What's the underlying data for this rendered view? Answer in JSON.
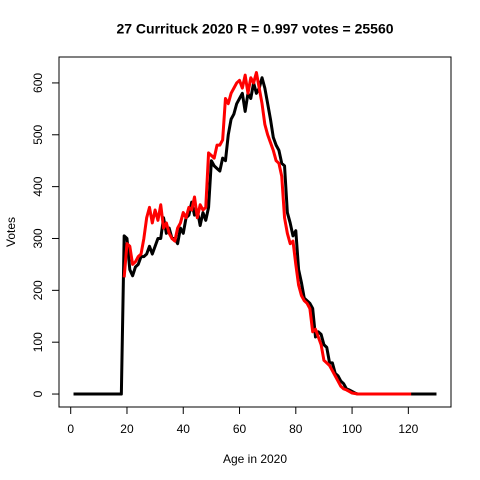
{
  "chart_data": {
    "type": "line",
    "title": "27 Currituck 2020 R = 0.997 votes = 25560",
    "x_label": "Age in 2020",
    "y_label": "Votes",
    "xlim": [
      -4.16,
      135.16
    ],
    "ylim": [
      -25,
      650
    ],
    "xticks": [
      0,
      20,
      40,
      60,
      80,
      100,
      120
    ],
    "yticks": [
      0,
      100,
      200,
      300,
      400,
      500,
      600
    ],
    "x": [
      1,
      2,
      3,
      4,
      5,
      6,
      7,
      8,
      9,
      10,
      11,
      12,
      13,
      14,
      15,
      16,
      17,
      18,
      19,
      20,
      21,
      22,
      23,
      24,
      25,
      26,
      27,
      28,
      29,
      30,
      31,
      32,
      33,
      34,
      35,
      36,
      37,
      38,
      39,
      40,
      41,
      42,
      43,
      44,
      45,
      46,
      47,
      48,
      49,
      50,
      51,
      52,
      53,
      54,
      55,
      56,
      57,
      58,
      59,
      60,
      61,
      62,
      63,
      64,
      65,
      66,
      67,
      68,
      69,
      70,
      71,
      72,
      73,
      74,
      75,
      76,
      77,
      78,
      79,
      80,
      81,
      82,
      83,
      84,
      85,
      86,
      87,
      88,
      89,
      90,
      91,
      92,
      93,
      94,
      95,
      96,
      97,
      98,
      99,
      100,
      101,
      102,
      103,
      104,
      105,
      106,
      107,
      108,
      109,
      110,
      111,
      112,
      113,
      114,
      115,
      116,
      117,
      118,
      119,
      120,
      121,
      122,
      123,
      124,
      125,
      126,
      127,
      128,
      129,
      130
    ],
    "series": [
      {
        "color": "#000000",
        "values": [
          0,
          0,
          0,
          0,
          0,
          0,
          0,
          0,
          0,
          0,
          0,
          0,
          0,
          0,
          0,
          0,
          0,
          0,
          305,
          300,
          240,
          228,
          245,
          250,
          265,
          265,
          270,
          285,
          270,
          285,
          300,
          300,
          340,
          310,
          320,
          300,
          300,
          290,
          320,
          310,
          340,
          345,
          370,
          345,
          355,
          325,
          350,
          335,
          360,
          450,
          440,
          435,
          430,
          455,
          450,
          500,
          530,
          540,
          560,
          570,
          580,
          545,
          580,
          570,
          600,
          580,
          590,
          610,
          590,
          560,
          530,
          495,
          480,
          470,
          445,
          440,
          350,
          330,
          305,
          315,
          240,
          215,
          185,
          180,
          175,
          165,
          110,
          120,
          115,
          95,
          90,
          60,
          60,
          40,
          35,
          25,
          20,
          10,
          8,
          5,
          2,
          0,
          0,
          0,
          0,
          0,
          0,
          0,
          0,
          0,
          0,
          0,
          0,
          0,
          0,
          0,
          0,
          0,
          0,
          0,
          0,
          0,
          0,
          0,
          0,
          0,
          0,
          0,
          0,
          0
        ]
      },
      {
        "color": "#ff0000",
        "values": [
          null,
          null,
          null,
          null,
          null,
          null,
          null,
          null,
          null,
          null,
          null,
          null,
          null,
          null,
          null,
          null,
          null,
          null,
          225,
          290,
          285,
          250,
          255,
          265,
          270,
          300,
          340,
          360,
          330,
          355,
          335,
          365,
          320,
          330,
          310,
          300,
          295,
          320,
          330,
          350,
          340,
          360,
          355,
          380,
          340,
          365,
          355,
          360,
          465,
          460,
          455,
          480,
          480,
          490,
          570,
          560,
          580,
          590,
          600,
          605,
          590,
          615,
          580,
          610,
          600,
          620,
          590,
          560,
          520,
          500,
          485,
          470,
          450,
          445,
          420,
          340,
          310,
          290,
          295,
          250,
          210,
          190,
          180,
          175,
          165,
          120,
          125,
          110,
          95,
          65,
          60,
          55,
          45,
          35,
          25,
          15,
          10,
          8,
          5,
          2,
          1,
          0,
          0,
          0,
          0,
          0,
          0,
          0,
          0,
          0,
          0,
          0,
          0,
          0,
          0,
          0,
          0,
          0,
          0,
          0,
          0,
          null,
          null,
          null,
          null,
          null,
          null,
          null,
          null,
          null
        ]
      }
    ]
  }
}
